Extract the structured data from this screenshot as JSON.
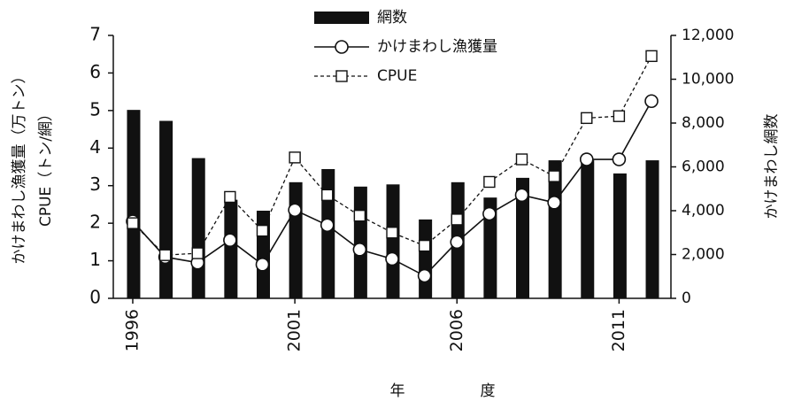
{
  "chart_data": {
    "type": "combo",
    "x_label": "年　　　　　度",
    "y_label": [
      "かけまわし漁獲量（万トン）",
      "CPUE（トン/網）"
    ],
    "y2_label": "かけまわし網数",
    "x": [
      1996,
      1997,
      1998,
      1999,
      2000,
      2001,
      2002,
      2003,
      2004,
      2005,
      2006,
      2007,
      2008,
      2009,
      2010,
      2011,
      2012
    ],
    "xlim": [
      1995.4,
      2012.6
    ],
    "xticks": [
      1996,
      2001,
      2006,
      2011
    ],
    "ylim": [
      0,
      7
    ],
    "yticks": [
      0,
      1,
      2,
      3,
      4,
      5,
      6,
      7
    ],
    "y2lim": [
      0,
      12000
    ],
    "y2ticks": [
      0,
      {
        "value": 2000,
        "label": "2,000"
      },
      {
        "value": 4000,
        "label": "4,000"
      },
      {
        "value": 6000,
        "label": "6,000"
      },
      {
        "value": 8000,
        "label": "8,000"
      },
      {
        "value": 10000,
        "label": "10,000"
      },
      {
        "value": 12000,
        "label": "12,000"
      }
    ],
    "series": [
      {
        "name": "網数",
        "type": "bar",
        "axis": "y2",
        "color": "#111111",
        "values": [
          8600,
          8100,
          6400,
          4500,
          4000,
          5300,
          5900,
          5100,
          5200,
          3600,
          5300,
          4600,
          5500,
          6300,
          6300,
          5700,
          6300
        ]
      },
      {
        "name": "かけまわし漁獲量",
        "type": "line",
        "marker": "circle",
        "dash": false,
        "color": "#111111",
        "values": [
          2.05,
          1.1,
          0.95,
          1.55,
          0.9,
          2.35,
          1.95,
          1.3,
          1.05,
          0.6,
          1.5,
          2.25,
          2.75,
          2.55,
          3.7,
          3.7,
          5.25
        ]
      },
      {
        "name": "CPUE",
        "type": "line",
        "marker": "square",
        "dash": true,
        "color": "#111111",
        "values": [
          2.0,
          1.15,
          1.2,
          2.7,
          1.8,
          3.75,
          2.75,
          2.2,
          1.75,
          1.4,
          2.1,
          3.1,
          3.7,
          3.25,
          4.8,
          4.85,
          6.45
        ]
      }
    ]
  }
}
